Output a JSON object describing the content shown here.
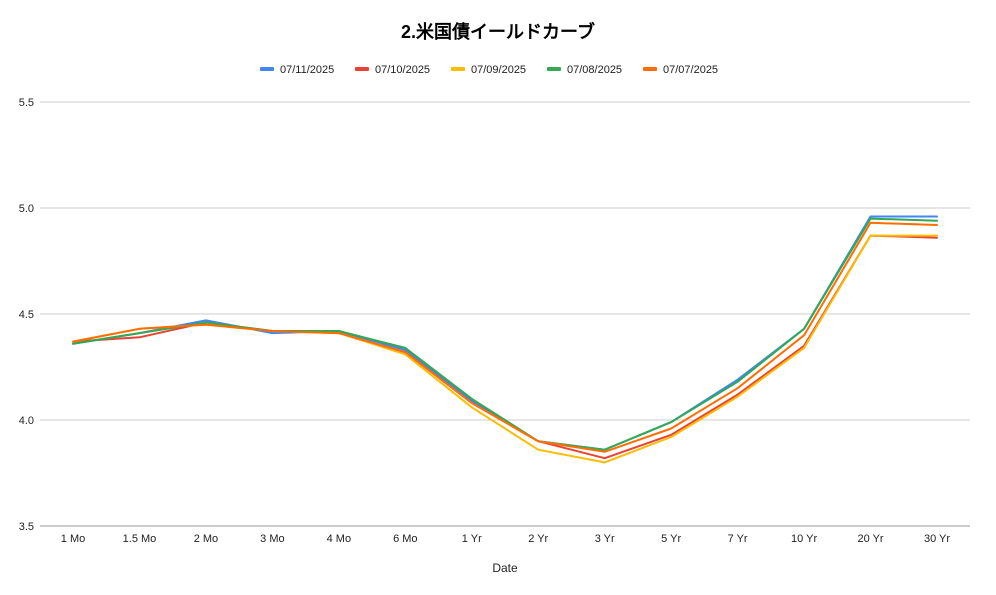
{
  "chart_data": {
    "type": "line",
    "title": "2.米国債イールドカーブ",
    "xlabel": "Date",
    "ylabel": "",
    "ylim": [
      3.5,
      5.5
    ],
    "yticks": [
      "5.5",
      "5.0",
      "4.5",
      "4.0",
      "3.5"
    ],
    "grid": true,
    "legend_position": "top",
    "categories": [
      "1 Mo",
      "1.5 Mo",
      "2 Mo",
      "3 Mo",
      "4 Mo",
      "6 Mo",
      "1 Yr",
      "2 Yr",
      "3 Yr",
      "5 Yr",
      "7 Yr",
      "10 Yr",
      "20 Yr",
      "30 Yr"
    ],
    "series": [
      {
        "name": "07/11/2025",
        "color": "#4285F4",
        "values": [
          4.36,
          4.41,
          4.47,
          4.41,
          4.42,
          4.33,
          4.09,
          3.9,
          3.86,
          3.99,
          4.19,
          4.43,
          4.96,
          4.96
        ]
      },
      {
        "name": "07/10/2025",
        "color": "#EA4335",
        "values": [
          4.37,
          4.39,
          4.46,
          4.42,
          4.41,
          4.32,
          4.08,
          3.9,
          3.82,
          3.93,
          4.12,
          4.35,
          4.87,
          4.86
        ]
      },
      {
        "name": "07/09/2025",
        "color": "#FBBC04",
        "values": [
          4.37,
          4.43,
          4.45,
          4.42,
          4.41,
          4.31,
          4.06,
          3.86,
          3.8,
          3.92,
          4.11,
          4.34,
          4.87,
          4.87
        ]
      },
      {
        "name": "07/08/2025",
        "color": "#34A853",
        "values": [
          4.36,
          4.41,
          4.46,
          4.42,
          4.42,
          4.34,
          4.1,
          3.9,
          3.86,
          3.99,
          4.18,
          4.43,
          4.95,
          4.94
        ]
      },
      {
        "name": "07/07/2025",
        "color": "#FF6D01",
        "values": [
          4.37,
          4.43,
          4.45,
          4.42,
          4.41,
          4.32,
          4.08,
          3.9,
          3.85,
          3.96,
          4.15,
          4.4,
          4.93,
          4.92
        ]
      }
    ]
  }
}
